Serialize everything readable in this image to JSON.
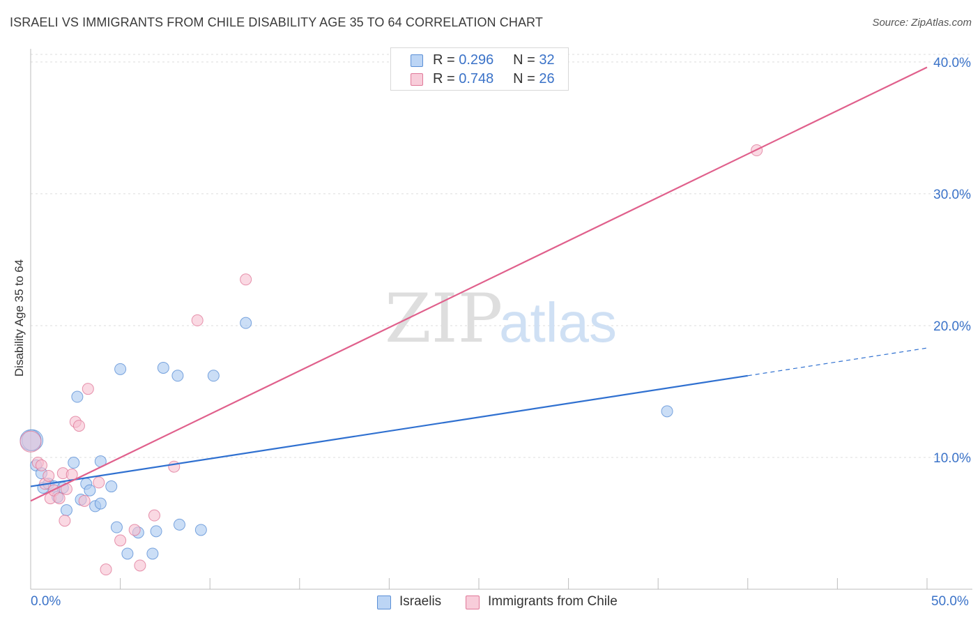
{
  "chart_data": {
    "type": "scatter",
    "title": "ISRAELI VS IMMIGRANTS FROM CHILE DISABILITY AGE 35 TO 64 CORRELATION CHART",
    "source": "Source: ZipAtlas.com",
    "ylabel": "Disability Age 35 to 64",
    "xlabel": "",
    "xlim": [
      0,
      50
    ],
    "ylim": [
      0,
      41
    ],
    "x_tick_labels": [
      "0.0%",
      "50.0%"
    ],
    "y_ticks": [
      10,
      20,
      30,
      40
    ],
    "y_tick_labels": [
      "10.0%",
      "20.0%",
      "30.0%",
      "40.0%"
    ],
    "grid": true,
    "watermark": {
      "zip": "ZIP",
      "atlas": "atlas"
    },
    "series": [
      {
        "name": "Israelis",
        "r_label": "R =",
        "r": "0.296",
        "n_label": "N =",
        "n": "32",
        "color": "#a9c8f0",
        "edge": "#5a8fd6",
        "line_color": "#2f70d0",
        "trend": {
          "x0": 0,
          "y0": 7.8,
          "x1": 40,
          "y1": 16.2,
          "dash_to_x": 50,
          "dash_to_y": 18.3
        },
        "points": [
          [
            0.1,
            11.3
          ],
          [
            0.3,
            9.4
          ],
          [
            0.6,
            8.8
          ],
          [
            0.7,
            7.7
          ],
          [
            1.0,
            8.0
          ],
          [
            1.3,
            7.8
          ],
          [
            1.5,
            7.0
          ],
          [
            1.8,
            7.7
          ],
          [
            2.0,
            6.0
          ],
          [
            2.4,
            9.6
          ],
          [
            2.6,
            14.6
          ],
          [
            2.8,
            6.8
          ],
          [
            3.1,
            8.0
          ],
          [
            3.3,
            7.5
          ],
          [
            3.6,
            6.3
          ],
          [
            3.9,
            6.5
          ],
          [
            3.9,
            9.7
          ],
          [
            4.5,
            7.8
          ],
          [
            4.8,
            4.7
          ],
          [
            5.0,
            16.7
          ],
          [
            5.4,
            2.7
          ],
          [
            6.0,
            4.3
          ],
          [
            6.8,
            2.7
          ],
          [
            7.0,
            4.4
          ],
          [
            7.4,
            16.8
          ],
          [
            8.2,
            16.2
          ],
          [
            8.3,
            4.9
          ],
          [
            9.5,
            4.5
          ],
          [
            10.2,
            16.2
          ],
          [
            12.0,
            20.2
          ],
          [
            35.5,
            13.5
          ],
          [
            0.0,
            11.3
          ]
        ]
      },
      {
        "name": "Immigrants from Chile",
        "r_label": "R =",
        "r": "0.748",
        "n_label": "N =",
        "n": "26",
        "color": "#f6bfd0",
        "edge": "#e07898",
        "line_color": "#e0608c",
        "trend": {
          "x0": 0,
          "y0": 6.7,
          "x1": 50,
          "y1": 39.6
        },
        "points": [
          [
            0.0,
            11.2
          ],
          [
            0.4,
            9.6
          ],
          [
            0.6,
            9.4
          ],
          [
            0.8,
            8.0
          ],
          [
            1.0,
            8.6
          ],
          [
            1.1,
            6.9
          ],
          [
            1.3,
            7.5
          ],
          [
            1.6,
            6.9
          ],
          [
            1.8,
            8.8
          ],
          [
            1.9,
            5.2
          ],
          [
            2.0,
            7.6
          ],
          [
            2.3,
            8.7
          ],
          [
            2.5,
            12.7
          ],
          [
            2.7,
            12.4
          ],
          [
            3.0,
            6.7
          ],
          [
            3.2,
            15.2
          ],
          [
            3.8,
            8.1
          ],
          [
            4.2,
            1.5
          ],
          [
            5.0,
            3.7
          ],
          [
            5.8,
            4.5
          ],
          [
            6.1,
            1.8
          ],
          [
            6.9,
            5.6
          ],
          [
            8.0,
            9.3
          ],
          [
            9.3,
            20.4
          ],
          [
            12.0,
            23.5
          ],
          [
            40.5,
            33.3
          ]
        ]
      }
    ]
  }
}
